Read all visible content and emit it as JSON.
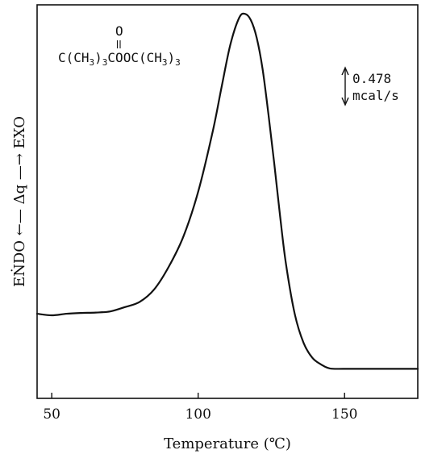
{
  "chart_data": {
    "type": "line",
    "title": "",
    "xlabel": "Temperature (℃)",
    "ylabel": "EṄDO ←— Δq —→ EXO",
    "xlim": [
      45,
      175
    ],
    "ylim": [
      0,
      100
    ],
    "xticks": [
      50,
      100,
      150
    ],
    "grid": false,
    "legend": "none",
    "series": [
      {
        "line_color": "#111111",
        "x": [
          45,
          50,
          55,
          60,
          65,
          70,
          75,
          80,
          85,
          90,
          95,
          100,
          105,
          108,
          111,
          114,
          116,
          118,
          120,
          122,
          124,
          126,
          128,
          130,
          133,
          136,
          139,
          142,
          145,
          150,
          160,
          175
        ],
        "y": [
          21.5,
          21.1,
          21.5,
          21.7,
          21.8,
          22.1,
          23.2,
          24.5,
          27.7,
          33.5,
          41.2,
          52.5,
          67.9,
          79.1,
          89.9,
          96.7,
          97.7,
          96.1,
          91.6,
          83.7,
          72.2,
          59.6,
          46.2,
          34.1,
          21.4,
          14.1,
          10.3,
          8.6,
          7.6,
          7.5,
          7.5,
          7.5
        ]
      }
    ],
    "annotations": {
      "formula_o": "O",
      "formula_main_parts": [
        "C(CH",
        "3",
        ")",
        "3",
        "COOC(CH",
        "3",
        ")",
        "3"
      ],
      "scale_value": "0.478",
      "scale_unit": "mcal/s"
    }
  }
}
